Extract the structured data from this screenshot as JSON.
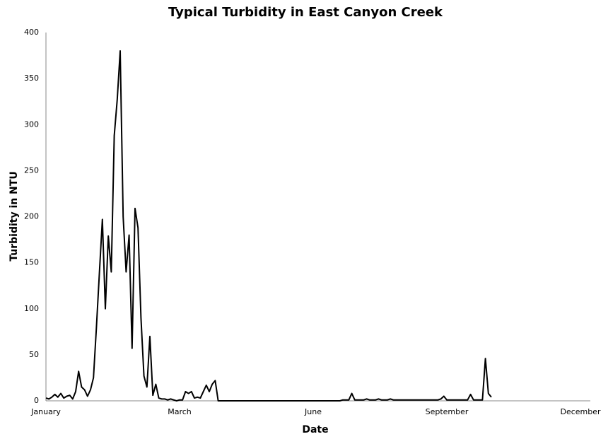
{
  "chart_data": {
    "type": "line",
    "title": "Typical Turbidity in East Canyon Creek",
    "x_label": "Date",
    "y_label": "Turbidity in NTU",
    "categories": [
      "January",
      null,
      null,
      null,
      null,
      null,
      null,
      null,
      null,
      null,
      null,
      null,
      null,
      null,
      null,
      null,
      null,
      null,
      null,
      null,
      null,
      null,
      null,
      null,
      null,
      null,
      null,
      null,
      null,
      null,
      null,
      null,
      null,
      null,
      null,
      null,
      null,
      null,
      null,
      null,
      null,
      null,
      null,
      null,
      null,
      "March",
      null,
      null,
      null,
      null,
      null,
      null,
      null,
      null,
      null,
      null,
      null,
      null,
      null,
      null,
      null,
      null,
      null,
      null,
      null,
      null,
      null,
      null,
      null,
      null,
      null,
      null,
      null,
      null,
      null,
      null,
      null,
      null,
      null,
      null,
      null,
      null,
      null,
      null,
      null,
      null,
      null,
      null,
      null,
      null,
      "June",
      null,
      null,
      null,
      null,
      null,
      null,
      null,
      null,
      null,
      null,
      null,
      null,
      null,
      null,
      null,
      null,
      null,
      null,
      null,
      null,
      null,
      null,
      null,
      null,
      null,
      null,
      null,
      null,
      null,
      null,
      null,
      null,
      null,
      null,
      null,
      null,
      null,
      null,
      null,
      null,
      null,
      null,
      null,
      null,
      "September",
      null,
      null,
      null,
      null,
      null,
      null,
      null,
      null,
      null,
      null,
      null,
      null,
      null,
      null,
      null,
      null,
      null,
      null,
      null,
      null,
      null,
      null,
      null,
      null,
      null,
      null,
      null,
      null,
      null,
      null,
      null,
      null,
      null,
      null,
      null,
      null,
      null,
      null,
      null,
      null,
      null,
      null,
      null,
      null,
      "December"
    ],
    "series": [
      {
        "name": "Turbidity",
        "color": "#000000",
        "values": [
          3,
          2,
          4,
          7,
          4,
          8,
          3,
          5,
          6,
          2,
          10,
          32,
          15,
          12,
          5,
          12,
          25,
          80,
          139,
          197,
          100,
          179,
          140,
          288,
          327,
          380,
          200,
          140,
          180,
          57,
          209,
          188,
          90,
          27,
          15,
          70,
          6,
          18,
          3,
          2,
          2,
          1,
          2,
          1,
          0,
          1,
          1,
          10,
          8,
          10,
          3,
          4,
          3,
          10,
          17,
          10,
          18,
          22,
          0,
          0,
          0,
          0,
          0,
          0,
          0,
          0,
          0,
          0,
          0,
          0,
          0,
          0,
          0,
          0,
          0,
          0,
          0,
          0,
          0,
          0,
          0,
          0,
          0,
          0,
          0,
          0,
          0,
          0,
          0,
          0,
          0,
          0,
          0,
          0,
          0,
          0,
          0,
          0,
          0,
          0,
          1,
          1,
          1,
          8,
          1,
          1,
          1,
          1,
          2,
          1,
          1,
          1,
          2,
          1,
          1,
          1,
          2,
          1,
          1,
          1,
          1,
          1,
          1,
          1,
          1,
          1,
          1,
          1,
          1,
          1,
          1,
          1,
          1,
          2,
          5,
          1,
          1,
          1,
          1,
          1,
          1,
          1,
          1,
          7,
          1,
          1,
          1,
          1,
          46,
          8,
          4,
          null,
          null,
          null,
          null,
          null,
          null,
          null,
          null,
          null,
          null,
          null,
          null,
          null,
          null,
          null,
          null,
          null,
          null,
          null,
          null,
          null,
          null,
          null,
          null,
          null,
          null,
          null,
          null,
          null,
          null
        ]
      }
    ],
    "ylim": [
      0,
      400
    ],
    "yticks": [
      0,
      50,
      100,
      150,
      200,
      250,
      300,
      350,
      400
    ],
    "grid": false
  }
}
